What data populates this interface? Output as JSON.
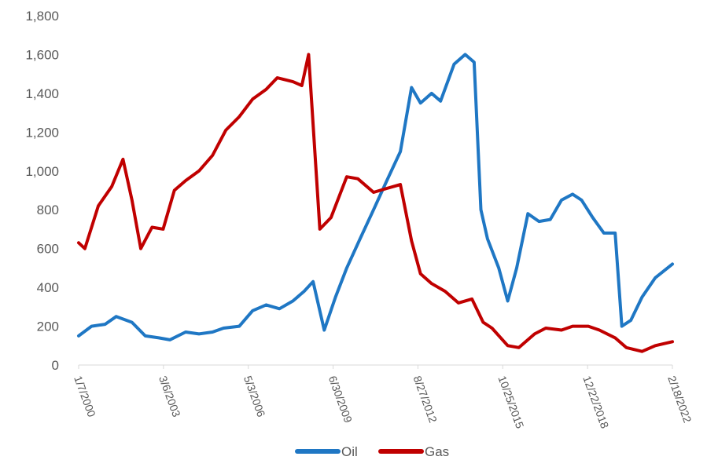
{
  "chart_data": {
    "type": "line",
    "title": "",
    "xlabel": "",
    "ylabel": "",
    "ylim": [
      0,
      1800
    ],
    "y_ticks": [
      "0",
      "200",
      "400",
      "600",
      "800",
      "1,000",
      "1,200",
      "1,400",
      "1,600",
      "1,800"
    ],
    "x_tick_labels": [
      "1/7/2000",
      "3/6/2003",
      "5/3/2006",
      "6/30/2009",
      "8/27/2012",
      "10/25/2015",
      "12/22/2018",
      "2/18/2022"
    ],
    "grid": false,
    "legend": "bottom",
    "series": [
      {
        "name": "Oil",
        "color": "#1f77c4",
        "x": [
          "2000-01-07",
          "2000-07-01",
          "2001-01-01",
          "2001-06-01",
          "2002-01-01",
          "2002-07-01",
          "2003-01-01",
          "2003-06-01",
          "2004-01-01",
          "2004-07-01",
          "2005-01-01",
          "2005-06-01",
          "2006-01-01",
          "2006-07-01",
          "2007-01-01",
          "2007-07-01",
          "2008-01-01",
          "2008-06-01",
          "2008-10-01",
          "2009-03-01",
          "2009-08-01",
          "2010-01-01",
          "2010-07-01",
          "2011-01-01",
          "2011-07-01",
          "2012-01-01",
          "2012-06-01",
          "2012-10-01",
          "2013-03-01",
          "2013-07-01",
          "2014-01-01",
          "2014-06-01",
          "2014-10-01",
          "2015-01-01",
          "2015-04-01",
          "2015-09-01",
          "2016-01-01",
          "2016-05-01",
          "2016-10-01",
          "2017-03-01",
          "2017-08-01",
          "2018-01-01",
          "2018-06-01",
          "2018-10-01",
          "2019-03-01",
          "2019-08-01",
          "2020-01-01",
          "2020-04-01",
          "2020-08-01",
          "2021-01-01",
          "2021-07-01",
          "2022-02-18"
        ],
        "values": [
          150,
          200,
          210,
          250,
          220,
          150,
          140,
          130,
          170,
          160,
          170,
          190,
          200,
          280,
          310,
          290,
          330,
          380,
          430,
          180,
          350,
          500,
          650,
          800,
          950,
          1100,
          1430,
          1350,
          1400,
          1360,
          1550,
          1600,
          1560,
          800,
          650,
          500,
          330,
          500,
          780,
          740,
          750,
          850,
          880,
          850,
          760,
          680,
          680,
          200,
          230,
          350,
          450,
          520
        ]
      },
      {
        "name": "Gas",
        "color": "#c00000",
        "x": [
          "2000-01-07",
          "2000-04-01",
          "2000-10-01",
          "2001-04-01",
          "2001-09-01",
          "2002-01-01",
          "2002-05-01",
          "2002-10-01",
          "2003-03-01",
          "2003-08-01",
          "2004-01-01",
          "2004-07-01",
          "2005-01-01",
          "2005-07-01",
          "2006-01-01",
          "2006-07-01",
          "2007-01-01",
          "2007-06-01",
          "2008-01-01",
          "2008-05-01",
          "2008-08-01",
          "2009-01-01",
          "2009-06-01",
          "2010-01-01",
          "2010-06-01",
          "2011-01-01",
          "2011-07-01",
          "2012-01-01",
          "2012-06-01",
          "2012-10-01",
          "2013-03-01",
          "2013-09-01",
          "2014-03-01",
          "2014-09-01",
          "2015-02-01",
          "2015-06-01",
          "2016-01-01",
          "2016-06-01",
          "2017-01-01",
          "2017-06-01",
          "2018-01-01",
          "2018-06-01",
          "2019-01-01",
          "2019-06-01",
          "2020-01-01",
          "2020-06-01",
          "2021-01-01",
          "2021-07-01",
          "2022-02-18"
        ],
        "values": [
          630,
          600,
          820,
          920,
          1060,
          850,
          600,
          710,
          700,
          900,
          950,
          1000,
          1080,
          1210,
          1280,
          1370,
          1420,
          1480,
          1460,
          1440,
          1600,
          700,
          760,
          970,
          960,
          890,
          910,
          930,
          640,
          470,
          420,
          380,
          320,
          340,
          220,
          190,
          100,
          90,
          160,
          190,
          180,
          200,
          200,
          180,
          140,
          90,
          70,
          100,
          120
        ]
      }
    ]
  }
}
